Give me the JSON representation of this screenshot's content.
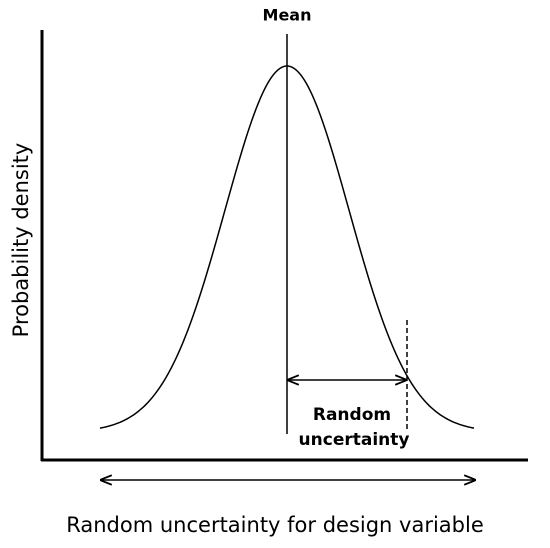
{
  "diagram": {
    "mean_label": "Mean",
    "y_axis_label": "Probability density",
    "annotation_lines": [
      "Random",
      "uncertainty"
    ],
    "x_axis_label": "Random uncertainty for design variable"
  }
}
